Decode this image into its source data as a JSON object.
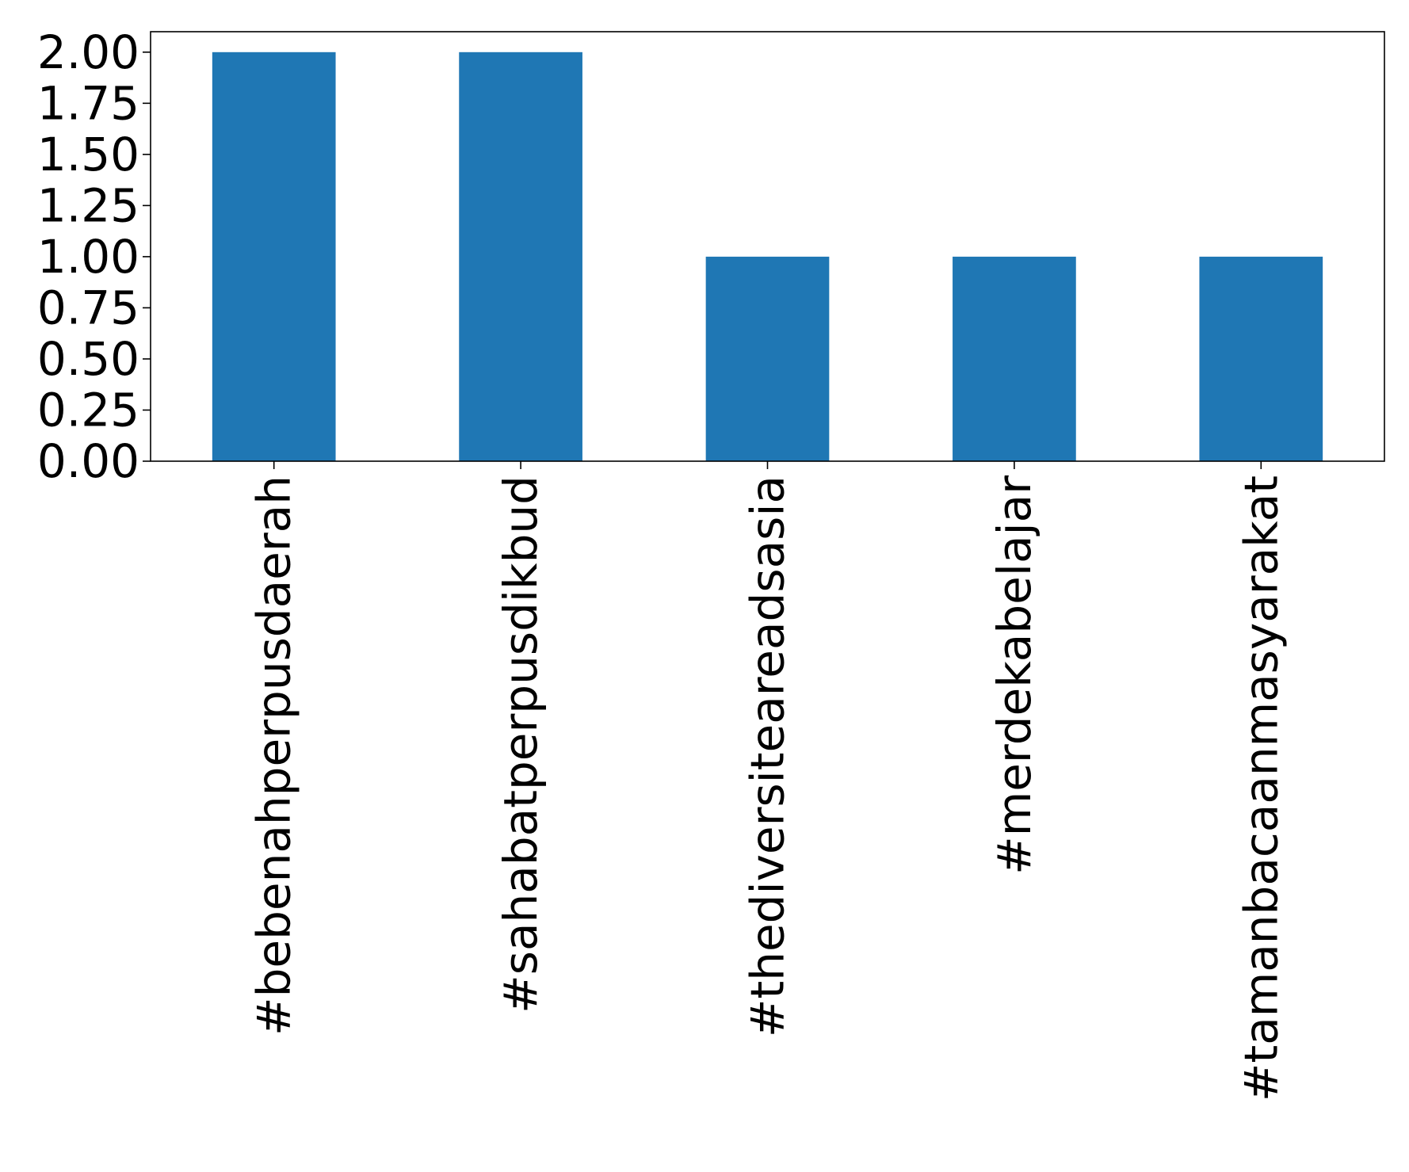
{
  "chart_data": {
    "type": "bar",
    "categories": [
      "#bebenahperpusdaerah",
      "#sahabatperpusdikbud",
      "#thediversiteareadsasia",
      "#merdekabelajar",
      "#tamanbacaanmasyarakat"
    ],
    "values": [
      2,
      2,
      1,
      1,
      1
    ],
    "title": "",
    "xlabel": "",
    "ylabel": "",
    "ylim": [
      0,
      2.1
    ],
    "yticks": [
      "0.00",
      "0.25",
      "0.50",
      "0.75",
      "1.00",
      "1.25",
      "1.50",
      "1.75",
      "2.00"
    ],
    "bar_color": "#1f77b4",
    "grid": false,
    "legend": "none"
  }
}
